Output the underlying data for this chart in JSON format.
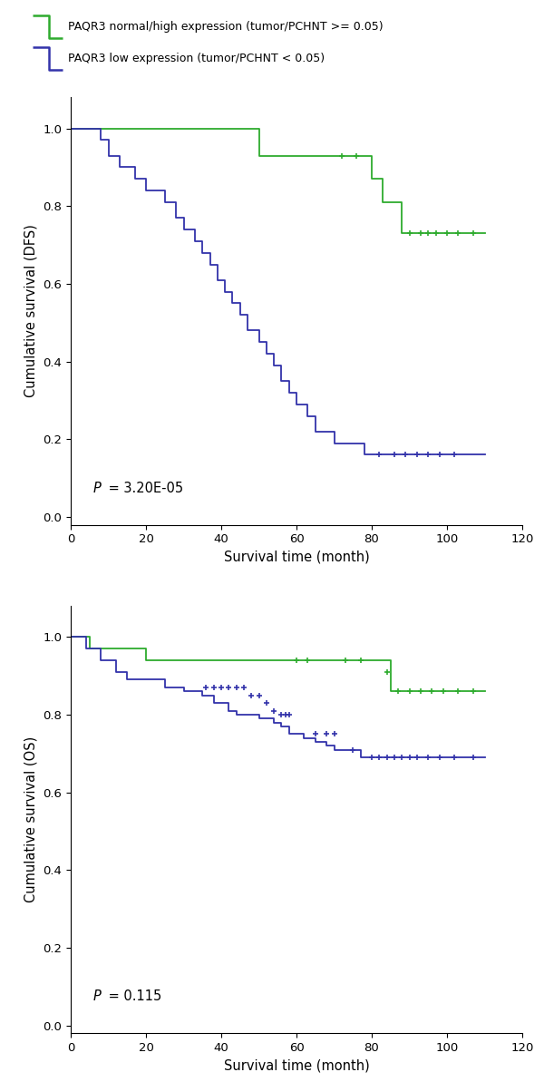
{
  "green_color": "#2eab2e",
  "blue_color": "#3333aa",
  "legend_label_green": "PAQR3 normal/high expression (tumor/PCHNT >= 0.05)",
  "legend_label_blue": "PAQR3 low expression (tumor/PCHNT < 0.05)",
  "panel1": {
    "ylabel": "Cumulative survival (DFS)",
    "xlabel": "Survival time (month)",
    "pvalue_italic": "P",
    "pvalue_rest": " = 3.20E-05",
    "xlim": [
      0,
      120
    ],
    "ylim": [
      -0.02,
      1.08
    ],
    "xticks": [
      0,
      20,
      40,
      60,
      80,
      100,
      120
    ],
    "yticks": [
      0,
      0.2,
      0.4,
      0.6,
      0.8,
      1.0
    ],
    "green_x": [
      0,
      30,
      50,
      72,
      76,
      80,
      83,
      88,
      110
    ],
    "green_y": [
      1.0,
      1.0,
      0.93,
      0.93,
      0.93,
      0.87,
      0.81,
      0.73,
      0.73
    ],
    "green_censors": [
      [
        72,
        0.93
      ],
      [
        76,
        0.93
      ],
      [
        90,
        0.73
      ],
      [
        93,
        0.73
      ],
      [
        95,
        0.73
      ],
      [
        97,
        0.73
      ],
      [
        100,
        0.73
      ],
      [
        103,
        0.73
      ],
      [
        107,
        0.73
      ]
    ],
    "blue_x": [
      0,
      8,
      10,
      13,
      17,
      20,
      25,
      28,
      30,
      33,
      35,
      37,
      39,
      41,
      43,
      45,
      47,
      50,
      52,
      54,
      56,
      58,
      60,
      63,
      65,
      70,
      75,
      78,
      82,
      110
    ],
    "blue_y": [
      1.0,
      0.97,
      0.93,
      0.9,
      0.87,
      0.84,
      0.81,
      0.77,
      0.74,
      0.71,
      0.68,
      0.65,
      0.61,
      0.58,
      0.55,
      0.52,
      0.48,
      0.45,
      0.42,
      0.39,
      0.35,
      0.32,
      0.29,
      0.26,
      0.22,
      0.19,
      0.19,
      0.16,
      0.16,
      0.16
    ],
    "blue_censors": [
      [
        82,
        0.16
      ],
      [
        86,
        0.16
      ],
      [
        89,
        0.16
      ],
      [
        92,
        0.16
      ],
      [
        95,
        0.16
      ],
      [
        98,
        0.16
      ],
      [
        102,
        0.16
      ]
    ]
  },
  "panel2": {
    "ylabel": "Cumulative survival (OS)",
    "xlabel": "Survival time (month)",
    "pvalue_italic": "P",
    "pvalue_rest": " = 0.115",
    "xlim": [
      0,
      120
    ],
    "ylim": [
      -0.02,
      1.08
    ],
    "xticks": [
      0,
      20,
      40,
      60,
      80,
      100,
      120
    ],
    "yticks": [
      0,
      0.2,
      0.4,
      0.6,
      0.8,
      1.0
    ],
    "green_x": [
      0,
      5,
      20,
      80,
      85,
      110
    ],
    "green_y": [
      1.0,
      0.97,
      0.94,
      0.94,
      0.86,
      0.86
    ],
    "green_censors": [
      [
        60,
        0.94
      ],
      [
        63,
        0.94
      ],
      [
        73,
        0.94
      ],
      [
        77,
        0.94
      ],
      [
        84,
        0.91
      ],
      [
        87,
        0.86
      ],
      [
        90,
        0.86
      ],
      [
        93,
        0.86
      ],
      [
        96,
        0.86
      ],
      [
        99,
        0.86
      ],
      [
        103,
        0.86
      ],
      [
        107,
        0.86
      ]
    ],
    "blue_x": [
      0,
      4,
      8,
      12,
      15,
      25,
      30,
      35,
      38,
      42,
      44,
      46,
      48,
      50,
      52,
      54,
      56,
      58,
      62,
      65,
      68,
      70,
      72,
      77,
      80,
      110
    ],
    "blue_y": [
      1.0,
      0.97,
      0.94,
      0.91,
      0.89,
      0.87,
      0.86,
      0.85,
      0.83,
      0.81,
      0.8,
      0.8,
      0.8,
      0.79,
      0.79,
      0.78,
      0.77,
      0.75,
      0.74,
      0.73,
      0.72,
      0.71,
      0.71,
      0.69,
      0.69,
      0.69
    ],
    "blue_censors": [
      [
        36,
        0.87
      ],
      [
        38,
        0.87
      ],
      [
        40,
        0.87
      ],
      [
        42,
        0.87
      ],
      [
        44,
        0.87
      ],
      [
        46,
        0.87
      ],
      [
        48,
        0.85
      ],
      [
        50,
        0.85
      ],
      [
        52,
        0.83
      ],
      [
        54,
        0.81
      ],
      [
        56,
        0.8
      ],
      [
        57,
        0.8
      ],
      [
        58,
        0.8
      ],
      [
        65,
        0.75
      ],
      [
        68,
        0.75
      ],
      [
        70,
        0.75
      ],
      [
        75,
        0.71
      ],
      [
        80,
        0.69
      ],
      [
        82,
        0.69
      ],
      [
        84,
        0.69
      ],
      [
        86,
        0.69
      ],
      [
        88,
        0.69
      ],
      [
        90,
        0.69
      ],
      [
        92,
        0.69
      ],
      [
        95,
        0.69
      ],
      [
        98,
        0.69
      ],
      [
        102,
        0.69
      ],
      [
        107,
        0.69
      ]
    ]
  }
}
